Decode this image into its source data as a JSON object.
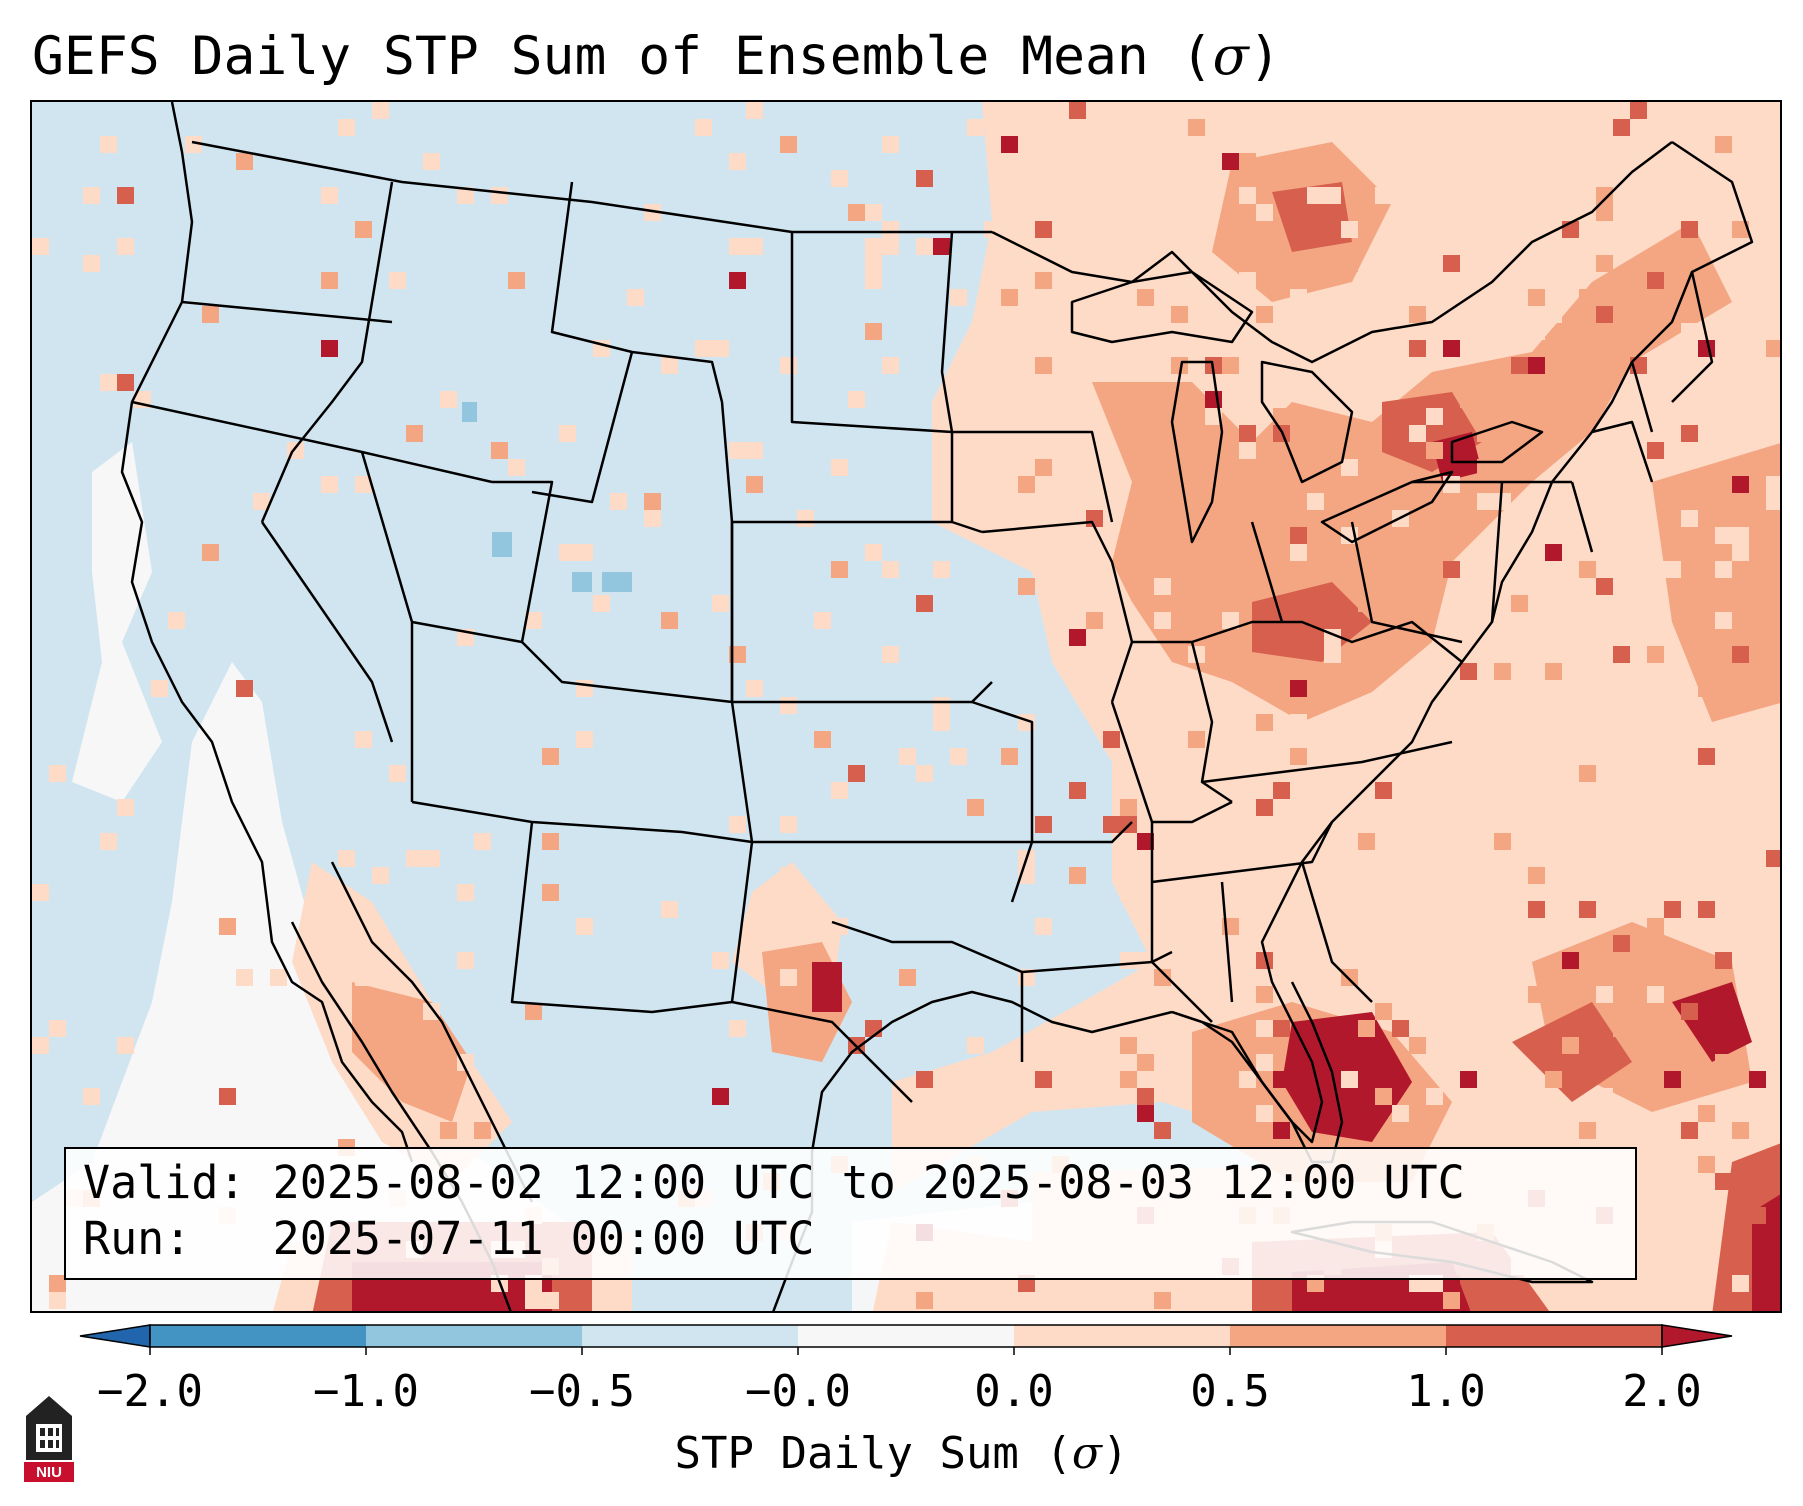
{
  "title": {
    "text": "GEFS Daily STP Sum of Ensemble Mean (",
    "symbol": "σ",
    "close": ")"
  },
  "info": {
    "valid_label": "Valid:",
    "valid_value": "2025-08-02 12:00 UTC to 2025-08-03 12:00 UTC",
    "run_label": "Run:",
    "run_value": "2025-07-11 00:00 UTC"
  },
  "colorbar": {
    "ticks": [
      "−2.0",
      "−1.0",
      "−0.5",
      "−0.0",
      "0.0",
      "0.5",
      "1.0",
      "2.0"
    ],
    "label_text": "STP Daily Sum (",
    "label_symbol": "σ",
    "label_close": ")",
    "colors": [
      "#2166ac",
      "#4393c3",
      "#92c5de",
      "#d1e5f0",
      "#f7f7f7",
      "#fddbc7",
      "#f4a582",
      "#d6604d",
      "#b2182b"
    ]
  },
  "logo": {
    "text": "NIU"
  }
}
